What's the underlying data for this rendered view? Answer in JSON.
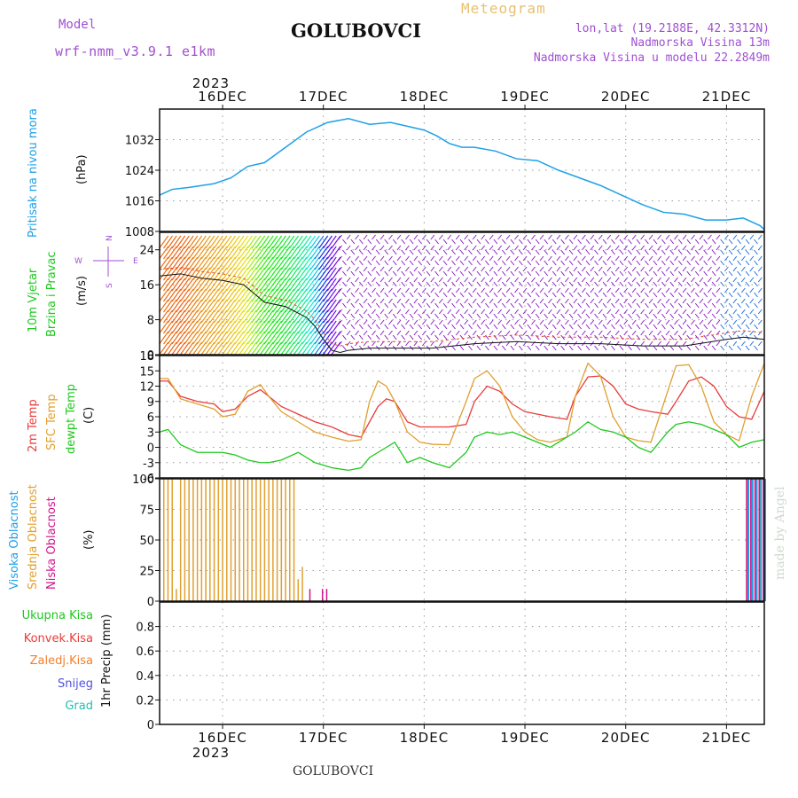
{
  "header": {
    "model_label": "Model",
    "model_name": "wrf-nmm_v3.9.1  e1km",
    "station": "GOLUBOVCI",
    "product": "Meteogram",
    "lonlat": "lon,lat (19.2188E, 42.3312N)",
    "elevation": "Nadmorska Visina 13m",
    "model_elevation": "Nadmorska Visina u modelu 22.2849m",
    "year_top": "2023",
    "year_bottom": "2023",
    "footer": "GOLUBOVCI",
    "signature": "made by Angel"
  },
  "colors": {
    "pressure": "#1ea0e6",
    "temp2m": "#e83c3c",
    "sfc_temp": "#e0a030",
    "dewpoint": "#1ec81e",
    "low_cloud": "#d2148c",
    "mid_cloud": "#e0a030",
    "high_cloud": "#1ea0e6",
    "model_purple": "#a050d0",
    "grid": "#9a9a9a",
    "meteogram_title": "#e8c070",
    "signature": "#d0d8d0"
  },
  "labels": {
    "pressure": [
      "Pritisak na nivou mora",
      "(hPa)"
    ],
    "wind": [
      "10m Vjetar",
      "Brzina i Pravac",
      "(m/s)"
    ],
    "wind_compass": [
      "N",
      "S",
      "W",
      "E"
    ],
    "temp": [
      "2m Temp",
      "SFC Temp",
      "dewpt Temp",
      "(C)"
    ],
    "cloud": [
      "Visoka Oblacnost",
      "Srednja Oblacnost",
      "Niska Oblacnost",
      "(%)"
    ],
    "precip_axis": "1hr Precip (mm)",
    "precip_legend": [
      "Ukupna Kisa",
      "Konvek.Kisa",
      "Zaledj.Kisa",
      "Snijeg",
      "Grad"
    ],
    "precip_legend_colors": [
      "#1ec81e",
      "#e83c3c",
      "#f08030",
      "#5050e0",
      "#20c0b0"
    ]
  },
  "chart_data": {
    "type": "line",
    "x_dates": [
      "16DEC",
      "17DEC",
      "18DEC",
      "19DEC",
      "20DEC",
      "21DEC"
    ],
    "x_hours_range": [
      -15,
      129
    ],
    "panels": [
      {
        "name": "pressure",
        "ylabel": "(hPa)",
        "ylim": [
          1008,
          1040
        ],
        "yticks": [
          1008,
          1016,
          1024,
          1032
        ],
        "series": [
          {
            "name": "Pritisak na nivou mora",
            "x": [
              -15,
              -12,
              -8,
              -5,
              -2,
              2,
              6,
              10,
              15,
              20,
              25,
              30,
              35,
              40,
              44,
              48,
              51,
              54,
              57,
              60,
              65,
              70,
              75,
              80,
              85,
              90,
              95,
              100,
              105,
              110,
              115,
              120,
              124,
              128,
              129
            ],
            "values": [
              1017.5,
              1019,
              1019.5,
              1020,
              1020.5,
              1022,
              1025,
              1026,
              1030,
              1034,
              1036.5,
              1037.5,
              1036,
              1036.5,
              1035.5,
              1034.5,
              1033,
              1031,
              1030,
              1030,
              1029,
              1027,
              1026.5,
              1024,
              1022,
              1020,
              1017.5,
              1015,
              1013,
              1012.5,
              1011,
              1011,
              1011.5,
              1009.5,
              1008.5
            ]
          }
        ]
      },
      {
        "name": "wind",
        "ylabel": "(m/s)",
        "ylim": [
          0,
          28
        ],
        "yticks": [
          0,
          8,
          16,
          24
        ],
        "series": [
          {
            "name": "10m Vjetar",
            "x": [
              -15,
              -10,
              -5,
              0,
              5,
              10,
              15,
              18,
              20,
              22,
              24,
              26,
              28,
              30,
              35,
              40,
              45,
              50,
              55,
              60,
              70,
              80,
              90,
              100,
              110,
              120,
              124,
              129
            ],
            "values": [
              18,
              18.5,
              17.5,
              17,
              16,
              12,
              11,
              9.5,
              8.5,
              6.5,
              3.5,
              1,
              0.5,
              1,
              1.5,
              1.5,
              1.5,
              1.5,
              2,
              2.5,
              3,
              2.5,
              2.5,
              2,
              2,
              3.5,
              4,
              3.5
            ]
          }
        ]
      },
      {
        "name": "temperature",
        "ylabel": "(C)",
        "ylim": [
          -6,
          18
        ],
        "yticks": [
          -6,
          -3,
          0,
          3,
          6,
          9,
          12,
          15,
          18
        ],
        "series": [
          {
            "name": "2m Temp",
            "x": [
              -15,
              -13,
              -10,
              -6,
              -2,
              0,
              3,
              6,
              9,
              11,
              14,
              18,
              22,
              26,
              30,
              33,
              35,
              37,
              39,
              41,
              44,
              47,
              50,
              54,
              58,
              60,
              63,
              66,
              69,
              72,
              75,
              78,
              82,
              84,
              87,
              90,
              93,
              96,
              99,
              102,
              106,
              108,
              111,
              114,
              117,
              120,
              123,
              126,
              129
            ],
            "values": [
              13,
              13,
              10,
              9,
              8.5,
              7,
              7.5,
              10,
              11.3,
              10,
              8,
              6.5,
              5,
              4,
              2.5,
              2,
              5,
              8,
              9.5,
              9,
              5,
              4,
              4,
              4,
              4.5,
              9,
              12,
              11,
              8.5,
              7,
              6.5,
              6,
              5.5,
              10,
              13.8,
              14,
              12,
              8.5,
              7.5,
              7,
              6.5,
              9,
              13,
              13.8,
              12,
              8,
              6,
              5.5,
              11
            ]
          },
          {
            "name": "SFC Temp",
            "x": [
              -15,
              -13,
              -10,
              -6,
              -2,
              0,
              3,
              6,
              9,
              11,
              14,
              18,
              22,
              26,
              30,
              33,
              35,
              37,
              39,
              41,
              44,
              47,
              50,
              54,
              58,
              60,
              63,
              66,
              69,
              72,
              75,
              78,
              82,
              84,
              87,
              90,
              93,
              96,
              99,
              102,
              106,
              108,
              111,
              114,
              117,
              120,
              123,
              126,
              129
            ],
            "values": [
              13.5,
              13.5,
              9.5,
              8.5,
              7.5,
              6,
              6.5,
              11,
              12.3,
              10,
              7,
              5,
              3,
              2,
              1.2,
              1.5,
              9,
              13,
              12,
              9,
              3,
              1,
              0.6,
              0.5,
              9,
              13.5,
              15,
              12,
              6,
              3,
              1.5,
              1,
              2,
              10,
              16.5,
              14,
              6,
              2,
              1.3,
              1,
              11,
              16,
              16.2,
              12,
              5,
              2.5,
              1.3,
              10,
              16.5
            ]
          },
          {
            "name": "dewpt Temp",
            "x": [
              -15,
              -13,
              -10,
              -6,
              -2,
              0,
              3,
              6,
              9,
              11,
              14,
              18,
              22,
              26,
              30,
              33,
              35,
              37,
              39,
              41,
              44,
              47,
              50,
              54,
              58,
              60,
              63,
              66,
              69,
              72,
              75,
              78,
              82,
              84,
              87,
              90,
              93,
              96,
              99,
              102,
              106,
              108,
              111,
              114,
              117,
              120,
              123,
              126,
              129
            ],
            "values": [
              3,
              3.5,
              0.5,
              -1,
              -1,
              -1,
              -1.5,
              -2.5,
              -3,
              -3,
              -2.5,
              -1,
              -3,
              -4,
              -4.5,
              -4,
              -2,
              -1,
              0,
              1,
              -3,
              -2,
              -3,
              -4,
              -1,
              2,
              3,
              2.5,
              3,
              2,
              1,
              0,
              2,
              3,
              5,
              3.5,
              3,
              2,
              0,
              -1,
              3,
              4.5,
              5,
              4.5,
              3.5,
              2.5,
              0,
              1,
              1.5
            ]
          }
        ]
      },
      {
        "name": "cloud",
        "ylabel": "(%)",
        "ylim": [
          0,
          100
        ],
        "yticks": [
          0,
          25,
          50,
          75,
          100
        ],
        "series": [
          {
            "name": "Srednja Oblacnost",
            "x": [
              -14,
              -13,
              -12,
              -11,
              -10,
              -9,
              -8,
              -7,
              -6,
              -5,
              -4,
              -3,
              -2,
              -1,
              0,
              1,
              2,
              3,
              4,
              5,
              6,
              7,
              8,
              9,
              10,
              11,
              12,
              13,
              14,
              15,
              16,
              17,
              18,
              19,
              125,
              126,
              127,
              128,
              129
            ],
            "values": [
              100,
              100,
              100,
              10,
              100,
              100,
              100,
              100,
              100,
              100,
              100,
              100,
              100,
              100,
              100,
              100,
              100,
              100,
              100,
              100,
              100,
              100,
              100,
              100,
              100,
              100,
              100,
              100,
              100,
              100,
              100,
              100,
              18,
              28,
              100,
              100,
              100,
              100,
              100
            ]
          },
          {
            "name": "Niska Oblacnost",
            "x": [
              21,
              24,
              25,
              125,
              126,
              127,
              128,
              129
            ],
            "values": [
              10,
              10,
              10,
              100,
              100,
              100,
              100,
              100
            ]
          },
          {
            "name": "Visoka Oblacnost",
            "x": [
              125,
              126,
              127,
              128,
              129
            ],
            "values": [
              100,
              100,
              100,
              100,
              100
            ]
          }
        ]
      },
      {
        "name": "precip",
        "ylabel": "1hr Precip (mm)",
        "ylim": [
          0,
          1.0
        ],
        "yticks": [
          0,
          0.2,
          0.4,
          0.6,
          0.8
        ],
        "series": [
          {
            "name": "Ukupna Kisa",
            "x": [],
            "values": []
          }
        ]
      }
    ]
  }
}
